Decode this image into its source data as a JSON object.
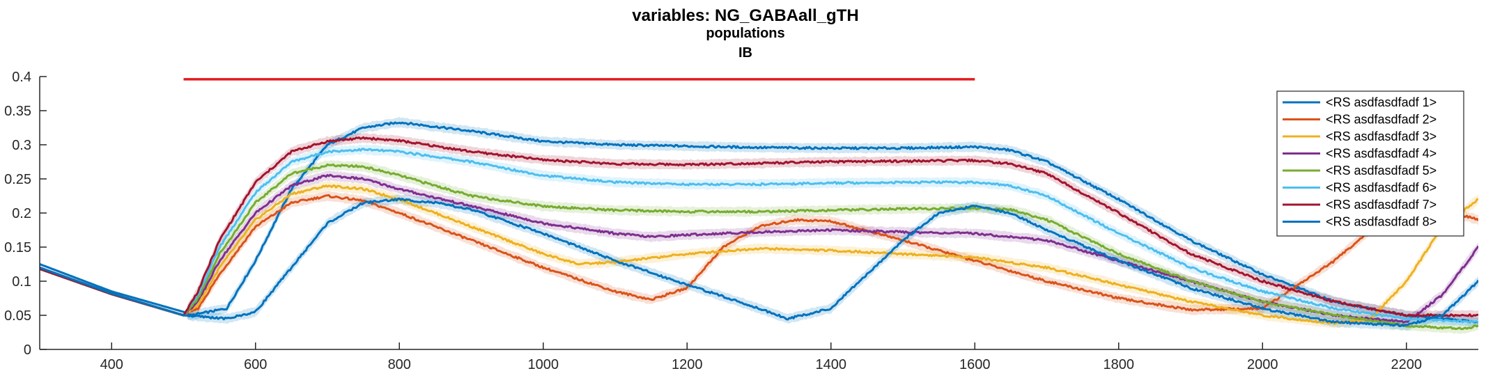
{
  "chart_data": {
    "type": "line",
    "title": "variables: NG_GABAall_gTH",
    "subtitle": "populations",
    "subtitle2": "IB",
    "xlim": [
      300,
      2300
    ],
    "ylim": [
      0,
      0.4
    ],
    "xticks": [
      400,
      600,
      800,
      1000,
      1200,
      1400,
      1600,
      1800,
      2000,
      2200
    ],
    "xtick_labels": [
      "400",
      "600",
      "800",
      "1000",
      "1200",
      "1400",
      "1600",
      "1800",
      "2000",
      "2200"
    ],
    "yticks": [
      0,
      0.05,
      0.1,
      0.15,
      0.2,
      0.25,
      0.3,
      0.35,
      0.4
    ],
    "ytick_labels": [
      "0",
      "0.05",
      "0.1",
      "0.15",
      "0.2",
      "0.25",
      "0.3",
      "0.35",
      "0.4"
    ],
    "legend_position": "top-right",
    "stim_bar": {
      "x": [
        500,
        1600
      ],
      "y": 0.396,
      "color": "#e41a1c"
    },
    "series": [
      {
        "name": "<RS asdfasdfadf 1>",
        "color": "#0072BD",
        "x": [
          300,
          400,
          500,
          510,
          560,
          600,
          650,
          700,
          750,
          800,
          900,
          1000,
          1100,
          1200,
          1300,
          1400,
          1500,
          1600,
          1650,
          1700,
          1800,
          1900,
          2000,
          2100,
          2200,
          2300
        ],
        "y": [
          0.125,
          0.085,
          0.055,
          0.05,
          0.06,
          0.13,
          0.235,
          0.3,
          0.325,
          0.333,
          0.32,
          0.305,
          0.3,
          0.298,
          0.296,
          0.295,
          0.295,
          0.297,
          0.292,
          0.275,
          0.22,
          0.16,
          0.11,
          0.07,
          0.05,
          0.04
        ]
      },
      {
        "name": "<RS asdfasdfadf 2>",
        "color": "#D95319",
        "x": [
          300,
          400,
          500,
          520,
          550,
          600,
          650,
          700,
          750,
          800,
          900,
          1000,
          1100,
          1150,
          1200,
          1250,
          1300,
          1350,
          1400,
          1500,
          1600,
          1700,
          1800,
          1900,
          2000,
          2100,
          2200,
          2300
        ],
        "y": [
          0.12,
          0.082,
          0.05,
          0.06,
          0.11,
          0.18,
          0.215,
          0.225,
          0.218,
          0.2,
          0.16,
          0.12,
          0.085,
          0.073,
          0.09,
          0.15,
          0.18,
          0.19,
          0.188,
          0.16,
          0.13,
          0.1,
          0.075,
          0.058,
          0.06,
          0.13,
          0.22,
          0.19
        ]
      },
      {
        "name": "<RS asdfasdfadf 3>",
        "color": "#EDB120",
        "x": [
          300,
          400,
          500,
          520,
          550,
          600,
          650,
          700,
          750,
          800,
          900,
          1000,
          1050,
          1100,
          1200,
          1300,
          1400,
          1500,
          1600,
          1700,
          1800,
          1900,
          2000,
          2100,
          2150,
          2200,
          2250,
          2300
        ],
        "y": [
          0.118,
          0.081,
          0.05,
          0.065,
          0.12,
          0.19,
          0.228,
          0.24,
          0.235,
          0.22,
          0.18,
          0.14,
          0.125,
          0.128,
          0.14,
          0.148,
          0.145,
          0.14,
          0.135,
          0.12,
          0.095,
          0.07,
          0.05,
          0.038,
          0.045,
          0.1,
          0.18,
          0.22
        ]
      },
      {
        "name": "<RS asdfasdfadf 4>",
        "color": "#7E2F8E",
        "x": [
          300,
          400,
          500,
          520,
          550,
          600,
          650,
          700,
          750,
          800,
          900,
          1000,
          1100,
          1150,
          1200,
          1300,
          1400,
          1500,
          1600,
          1700,
          1800,
          1900,
          2000,
          2100,
          2200,
          2250,
          2300
        ],
        "y": [
          0.118,
          0.081,
          0.05,
          0.07,
          0.13,
          0.2,
          0.24,
          0.255,
          0.25,
          0.235,
          0.21,
          0.185,
          0.17,
          0.165,
          0.168,
          0.172,
          0.175,
          0.172,
          0.17,
          0.16,
          0.13,
          0.1,
          0.07,
          0.05,
          0.04,
          0.08,
          0.15
        ]
      },
      {
        "name": "<RS asdfasdfadf 5>",
        "color": "#77AC30",
        "x": [
          300,
          400,
          500,
          520,
          550,
          600,
          650,
          700,
          750,
          800,
          900,
          1000,
          1100,
          1200,
          1300,
          1400,
          1500,
          1600,
          1650,
          1700,
          1800,
          1900,
          2000,
          2100,
          2200,
          2280,
          2300
        ],
        "y": [
          0.118,
          0.081,
          0.05,
          0.075,
          0.14,
          0.215,
          0.258,
          0.27,
          0.268,
          0.255,
          0.225,
          0.21,
          0.204,
          0.202,
          0.202,
          0.204,
          0.206,
          0.207,
          0.205,
          0.19,
          0.14,
          0.1,
          0.07,
          0.05,
          0.035,
          0.03,
          0.035
        ]
      },
      {
        "name": "<RS asdfasdfadf 6>",
        "color": "#4DBEEE",
        "x": [
          300,
          400,
          500,
          520,
          550,
          600,
          650,
          700,
          750,
          800,
          900,
          1000,
          1100,
          1200,
          1300,
          1400,
          1500,
          1600,
          1650,
          1700,
          1800,
          1900,
          2000,
          2100,
          2200,
          2300
        ],
        "y": [
          0.118,
          0.081,
          0.05,
          0.08,
          0.15,
          0.23,
          0.275,
          0.29,
          0.293,
          0.29,
          0.275,
          0.255,
          0.245,
          0.242,
          0.242,
          0.244,
          0.245,
          0.245,
          0.24,
          0.225,
          0.17,
          0.12,
          0.085,
          0.06,
          0.045,
          0.04
        ]
      },
      {
        "name": "<RS asdfasdfadf 7>",
        "color": "#A2142F",
        "x": [
          300,
          400,
          500,
          520,
          550,
          600,
          650,
          700,
          750,
          800,
          900,
          1000,
          1100,
          1200,
          1300,
          1400,
          1500,
          1600,
          1650,
          1700,
          1800,
          1900,
          2000,
          2100,
          2200,
          2300
        ],
        "y": [
          0.118,
          0.081,
          0.05,
          0.085,
          0.16,
          0.245,
          0.29,
          0.305,
          0.31,
          0.306,
          0.29,
          0.278,
          0.272,
          0.271,
          0.273,
          0.275,
          0.276,
          0.277,
          0.272,
          0.258,
          0.2,
          0.14,
          0.1,
          0.07,
          0.05,
          0.05
        ]
      },
      {
        "name": "<RS asdfasdfadf 8>",
        "color": "#0072BD",
        "x": [
          300,
          400,
          500,
          560,
          600,
          650,
          700,
          750,
          800,
          850,
          900,
          1000,
          1100,
          1200,
          1300,
          1340,
          1400,
          1450,
          1500,
          1550,
          1600,
          1650,
          1700,
          1800,
          1900,
          2000,
          2100,
          2200,
          2250,
          2300
        ],
        "y": [
          0.12,
          0.082,
          0.05,
          0.045,
          0.055,
          0.12,
          0.185,
          0.215,
          0.22,
          0.215,
          0.205,
          0.17,
          0.13,
          0.095,
          0.06,
          0.045,
          0.06,
          0.11,
          0.16,
          0.2,
          0.21,
          0.2,
          0.175,
          0.13,
          0.09,
          0.06,
          0.04,
          0.035,
          0.05,
          0.1
        ]
      }
    ]
  }
}
